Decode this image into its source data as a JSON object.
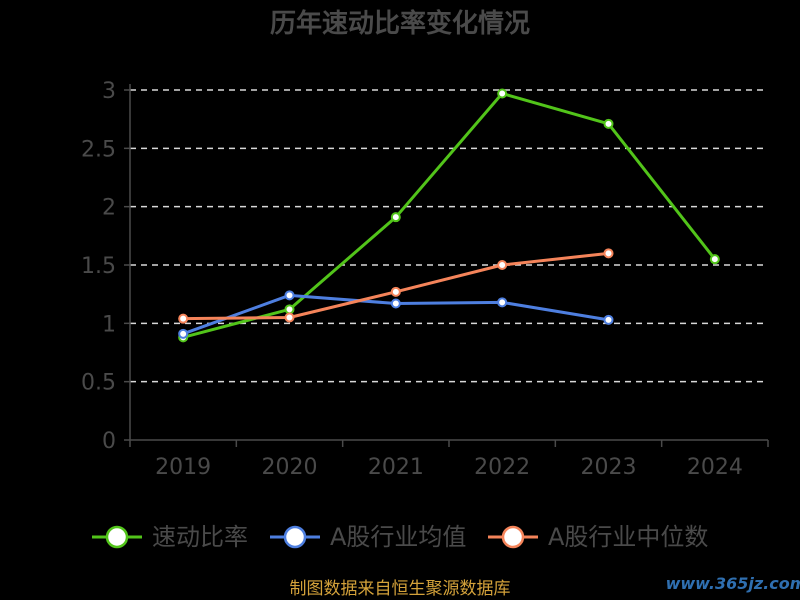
{
  "chart_data": {
    "type": "line",
    "title": "历年速动比率变化情况",
    "categories": [
      "2019",
      "2020",
      "2021",
      "2022",
      "2023",
      "2024"
    ],
    "ylim": [
      0,
      3
    ],
    "yticks": [
      "0",
      "0.5",
      "1",
      "1.5",
      "2",
      "2.5",
      "3"
    ],
    "grid": true,
    "legend_position": "bottom",
    "series": [
      {
        "name": "速动比率",
        "color": "#52c41a",
        "values": [
          0.88,
          1.12,
          1.91,
          2.97,
          2.71,
          1.55
        ]
      },
      {
        "name": "A股行业均值",
        "color": "#4e7fe0",
        "values": [
          0.91,
          1.24,
          1.17,
          1.18,
          1.03,
          null
        ]
      },
      {
        "name": "A股行业中位数",
        "color": "#f5845a",
        "values": [
          1.04,
          1.05,
          1.27,
          1.5,
          1.6,
          null
        ]
      }
    ]
  },
  "source_text": "制图数据来自恒生聚源数据库",
  "watermark_text": "www.365jz.com"
}
